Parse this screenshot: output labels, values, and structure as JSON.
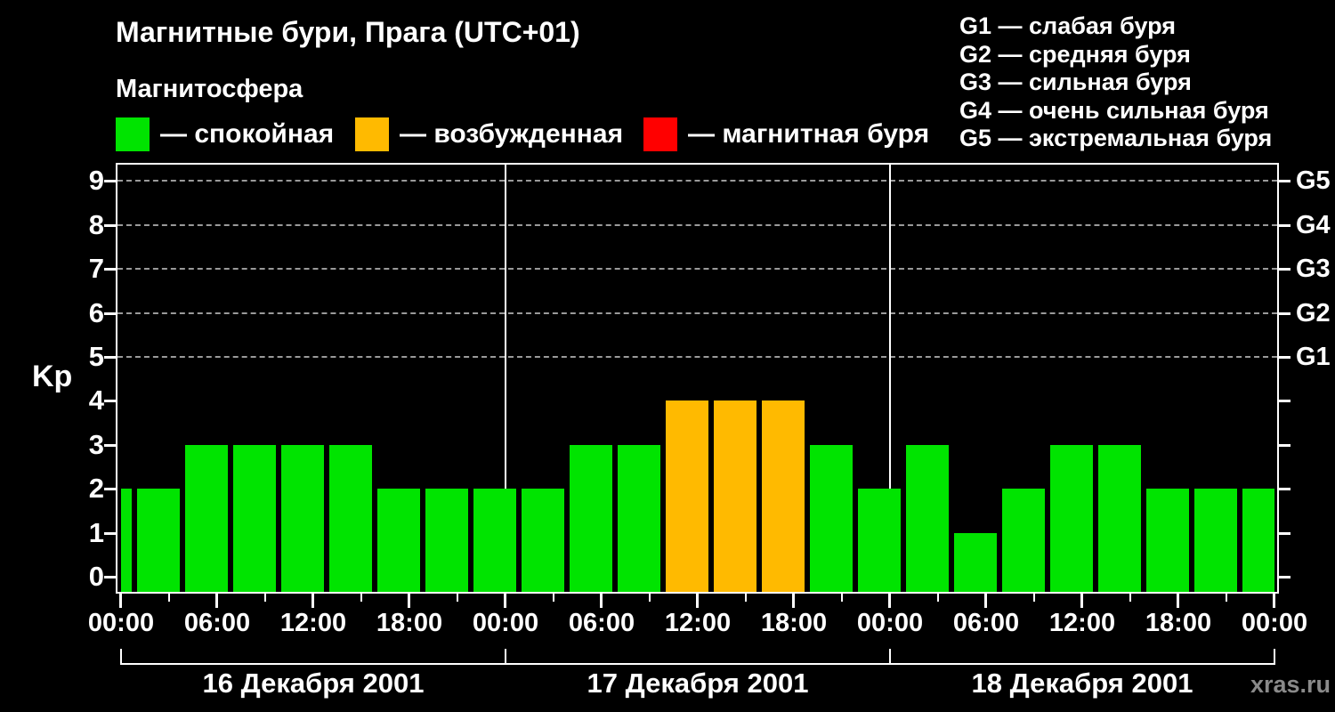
{
  "title": "Магнитные бури, Прага (UTC+01)",
  "subtitle": "Магнитосфера",
  "legend": {
    "items": [
      {
        "key": "quiet",
        "label": "— спокойная",
        "color": "#00e400"
      },
      {
        "key": "excited",
        "label": "— возбужденная",
        "color": "#ffba00"
      },
      {
        "key": "storm",
        "label": "— магнитная буря",
        "color": "#ff0000"
      }
    ]
  },
  "storm_scale": [
    "G1 — слабая буря",
    "G2 — средняя буря",
    "G3 — сильная буря",
    "G4 — очень сильная буря",
    "G5 — экстремальная буря"
  ],
  "watermark": "xras.ru",
  "chart_data": {
    "type": "bar",
    "title": "Магнитные бури, Прага (UTC+01)",
    "ylabel": "Kp",
    "ylim": [
      0,
      9
    ],
    "y_ticks": [
      0,
      1,
      2,
      3,
      4,
      5,
      6,
      7,
      8,
      9
    ],
    "grid_levels": [
      5,
      6,
      7,
      8,
      9
    ],
    "right_axis": [
      {
        "kp": 5,
        "label": "G1"
      },
      {
        "kp": 6,
        "label": "G2"
      },
      {
        "kp": 7,
        "label": "G3"
      },
      {
        "kp": 8,
        "label": "G4"
      },
      {
        "kp": 9,
        "label": "G5"
      }
    ],
    "x_tick_hours": [
      0,
      6,
      12,
      18,
      24,
      30,
      36,
      42,
      48,
      54,
      60,
      66,
      72
    ],
    "x_tick_labels": [
      "00:00",
      "06:00",
      "12:00",
      "18:00",
      "00:00",
      "06:00",
      "12:00",
      "18:00",
      "00:00",
      "06:00",
      "12:00",
      "18:00",
      "00:00"
    ],
    "x_minor_step_hours": 3,
    "days": [
      {
        "label": "16 Декабря 2001",
        "start_hour": 0,
        "end_hour": 24
      },
      {
        "label": "17 Декабря 2001",
        "start_hour": 24,
        "end_hour": 48
      },
      {
        "label": "18 Декабря 2001",
        "start_hour": 48,
        "end_hour": 72
      }
    ],
    "level_colors": {
      "quiet": "#00e400",
      "excited": "#ffba00",
      "storm": "#ff0000"
    },
    "bars": [
      {
        "hour": 0,
        "kp": 2,
        "level": "quiet"
      },
      {
        "hour": 3,
        "kp": 2,
        "level": "quiet"
      },
      {
        "hour": 6,
        "kp": 3,
        "level": "quiet"
      },
      {
        "hour": 9,
        "kp": 3,
        "level": "quiet"
      },
      {
        "hour": 12,
        "kp": 3,
        "level": "quiet"
      },
      {
        "hour": 15,
        "kp": 3,
        "level": "quiet"
      },
      {
        "hour": 18,
        "kp": 2,
        "level": "quiet"
      },
      {
        "hour": 21,
        "kp": 2,
        "level": "quiet"
      },
      {
        "hour": 24,
        "kp": 2,
        "level": "quiet"
      },
      {
        "hour": 27,
        "kp": 2,
        "level": "quiet"
      },
      {
        "hour": 30,
        "kp": 3,
        "level": "quiet"
      },
      {
        "hour": 33,
        "kp": 3,
        "level": "quiet"
      },
      {
        "hour": 36,
        "kp": 4,
        "level": "excited"
      },
      {
        "hour": 39,
        "kp": 4,
        "level": "excited"
      },
      {
        "hour": 42,
        "kp": 4,
        "level": "excited"
      },
      {
        "hour": 45,
        "kp": 3,
        "level": "quiet"
      },
      {
        "hour": 48,
        "kp": 2,
        "level": "quiet"
      },
      {
        "hour": 51,
        "kp": 3,
        "level": "quiet"
      },
      {
        "hour": 54,
        "kp": 1,
        "level": "quiet"
      },
      {
        "hour": 57,
        "kp": 2,
        "level": "quiet"
      },
      {
        "hour": 60,
        "kp": 3,
        "level": "quiet"
      },
      {
        "hour": 63,
        "kp": 3,
        "level": "quiet"
      },
      {
        "hour": 66,
        "kp": 2,
        "level": "quiet"
      },
      {
        "hour": 69,
        "kp": 2,
        "level": "quiet"
      },
      {
        "hour": 72,
        "kp": 2,
        "level": "quiet"
      }
    ]
  }
}
